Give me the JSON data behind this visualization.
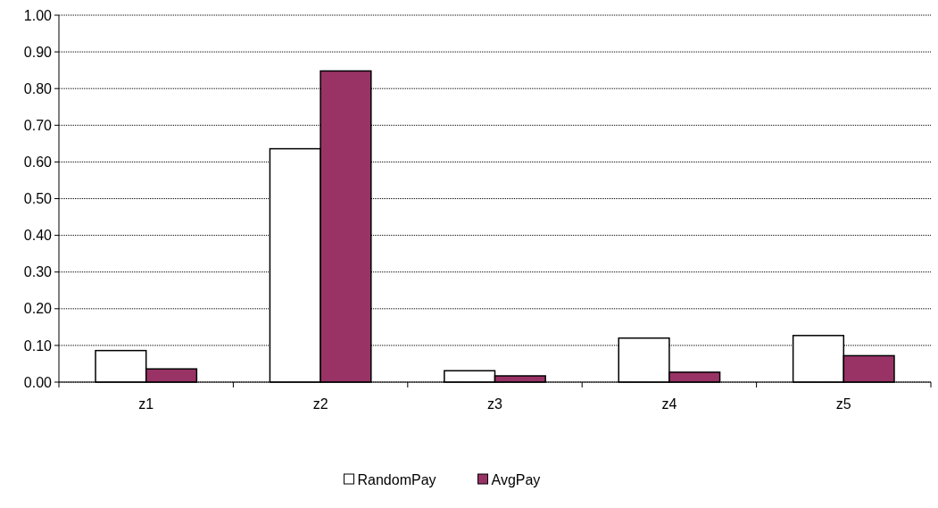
{
  "chart_data": {
    "type": "bar",
    "categories": [
      "z1",
      "z2",
      "z3",
      "z4",
      "z5"
    ],
    "series": [
      {
        "name": "RandomPay",
        "color": "#ffffff",
        "values": [
          0.086,
          0.636,
          0.031,
          0.12,
          0.127
        ]
      },
      {
        "name": "AvgPay",
        "color": "#993366",
        "values": [
          0.036,
          0.848,
          0.017,
          0.027,
          0.072
        ]
      }
    ],
    "ylim": [
      0,
      1
    ],
    "yticks": [
      {
        "value": 0,
        "label": "0.00"
      },
      {
        "value": 0.1,
        "label": "0.10"
      },
      {
        "value": 0.2,
        "label": "0.20"
      },
      {
        "value": 0.3,
        "label": "0.30"
      },
      {
        "value": 0.4,
        "label": "0.40"
      },
      {
        "value": 0.5,
        "label": "0.50"
      },
      {
        "value": 0.6,
        "label": "0.60"
      },
      {
        "value": 0.7,
        "label": "0.70"
      },
      {
        "value": 0.8,
        "label": "0.80"
      },
      {
        "value": 0.9,
        "label": "0.90"
      },
      {
        "value": 1,
        "label": "1.00"
      }
    ],
    "grid": "y",
    "legend": "bottom"
  }
}
